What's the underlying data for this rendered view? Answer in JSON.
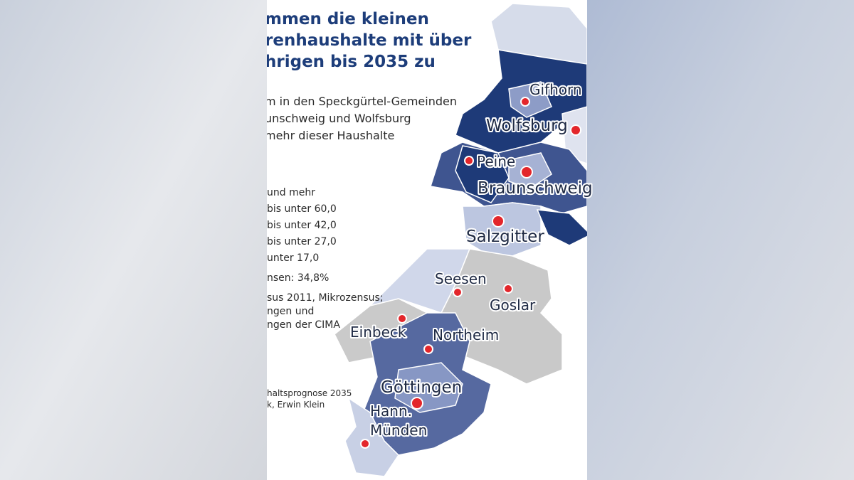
{
  "title_lines": [
    "mmen die kleinen",
    "renhaushalte mit über",
    "hrigen bis 2035 zu"
  ],
  "subtitle_lines": [
    "m in den Speckgürtel-Gemeinden",
    "unschweig und Wolfsburg",
    "mehr dieser Haushalte"
  ],
  "legend": [
    "und mehr",
    "bis unter 60,0",
    "bis unter 42,0",
    "bis unter 27,0",
    "unter 17,0"
  ],
  "note": "nsen: 34,8%",
  "source_lines": [
    "sus 2011, Mikrozensus;",
    "ngen und",
    "ngen der CIMA"
  ],
  "credit_lines": [
    "haltsprognose 2035",
    "k, Erwin Klein"
  ],
  "cities": [
    "Gifhorn",
    "Wolfsburg",
    "Peine",
    "Braunschweig",
    "Salzgitter",
    "Seesen",
    "Goslar",
    "Einbeck",
    "Northeim",
    "Göttingen"
  ],
  "hann_muenden": [
    "Hann.",
    "Münden"
  ]
}
